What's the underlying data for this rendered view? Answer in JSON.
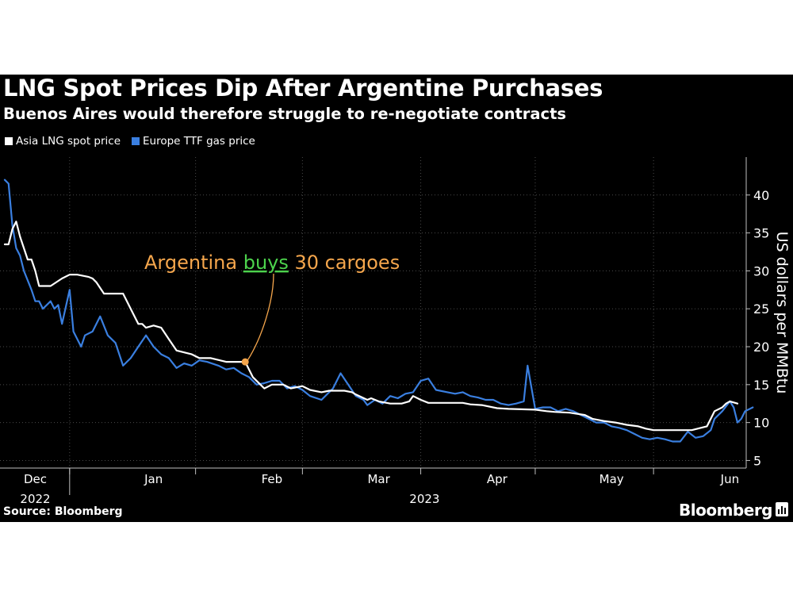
{
  "title": "LNG Spot Prices Dip After Argentine Purchases",
  "subtitle": "Buenos Aires would therefore struggle to re-negotiate contracts",
  "source": "Source: Bloomberg",
  "brand": "Bloomberg",
  "colors": {
    "background": "#000000",
    "asia": "#ffffff",
    "europe": "#3a7fe0",
    "annotation": "#f5a64c",
    "highlight": "#4cd24c"
  },
  "chart_data": {
    "type": "line",
    "ylabel": "US dollars per MMBtu",
    "ylim": [
      4,
      45
    ],
    "yticks": [
      5,
      10,
      15,
      20,
      25,
      30,
      35,
      40
    ],
    "xlim_day": [
      0,
      192
    ],
    "month_ticks": [
      {
        "label": "Dec",
        "day": 8
      },
      {
        "label": "Jan",
        "day": 39
      },
      {
        "label": "Feb",
        "day": 70
      },
      {
        "label": "Mar",
        "day": 98
      },
      {
        "label": "Apr",
        "day": 129
      },
      {
        "label": "May",
        "day": 159
      },
      {
        "label": "Jun",
        "day": 190
      }
    ],
    "year_labels": [
      {
        "label": "2022",
        "day": 8
      },
      {
        "label": "2023",
        "day": 110
      }
    ],
    "month_boundaries_day": [
      17,
      50,
      78,
      109,
      139,
      170
    ],
    "series": [
      {
        "name": "Asia LNG spot price",
        "color": "#ffffff",
        "points": [
          [
            0,
            33.5
          ],
          [
            1,
            33.5
          ],
          [
            2,
            35.5
          ],
          [
            3,
            36.5
          ],
          [
            4,
            34.5
          ],
          [
            6,
            31.5
          ],
          [
            7,
            31.5
          ],
          [
            8,
            30
          ],
          [
            9,
            28
          ],
          [
            12,
            28
          ],
          [
            15,
            29
          ],
          [
            17,
            29.5
          ],
          [
            19,
            29.5
          ],
          [
            22,
            29.2
          ],
          [
            23,
            29
          ],
          [
            24,
            28.5
          ],
          [
            26,
            27
          ],
          [
            29,
            27
          ],
          [
            31,
            27
          ],
          [
            33,
            25
          ],
          [
            35,
            23
          ],
          [
            36,
            23
          ],
          [
            37,
            22.5
          ],
          [
            39,
            22.8
          ],
          [
            41,
            22.5
          ],
          [
            43,
            21
          ],
          [
            45,
            19.5
          ],
          [
            49,
            19
          ],
          [
            51,
            18.5
          ],
          [
            54,
            18.5
          ],
          [
            58,
            18
          ],
          [
            63,
            18
          ],
          [
            65,
            16
          ],
          [
            67,
            15
          ],
          [
            68,
            14.5
          ],
          [
            70,
            15
          ],
          [
            73,
            15
          ],
          [
            75,
            14.5
          ],
          [
            78,
            14.8
          ],
          [
            80,
            14.3
          ],
          [
            83,
            14
          ],
          [
            85,
            14.2
          ],
          [
            89,
            14.2
          ],
          [
            91,
            14
          ],
          [
            92,
            13.7
          ],
          [
            95,
            13
          ],
          [
            96,
            13.2
          ],
          [
            98,
            12.8
          ],
          [
            101,
            12.5
          ],
          [
            104,
            12.5
          ],
          [
            106,
            12.8
          ],
          [
            107,
            13.5
          ],
          [
            109,
            13
          ],
          [
            111,
            12.6
          ],
          [
            115,
            12.6
          ],
          [
            118,
            12.6
          ],
          [
            120,
            12.6
          ],
          [
            122,
            12.4
          ],
          [
            125,
            12.3
          ],
          [
            129,
            11.9
          ],
          [
            132,
            11.8
          ],
          [
            139,
            11.7
          ],
          [
            142,
            11.5
          ],
          [
            144,
            11.4
          ],
          [
            148,
            11.3
          ],
          [
            152,
            11
          ],
          [
            154,
            10.5
          ],
          [
            157,
            10.2
          ],
          [
            160,
            10
          ],
          [
            163,
            9.7
          ],
          [
            166,
            9.5
          ],
          [
            168,
            9.2
          ],
          [
            170,
            9
          ],
          [
            173,
            9
          ],
          [
            176,
            9
          ],
          [
            180,
            9
          ],
          [
            184,
            9.5
          ],
          [
            185,
            10.5
          ],
          [
            186,
            11.5
          ],
          [
            188,
            12
          ],
          [
            189,
            12.5
          ],
          [
            190,
            12.8
          ],
          [
            192,
            12.5
          ]
        ]
      },
      {
        "name": "Europe TTF gas price",
        "color": "#3a7fe0",
        "points": [
          [
            0,
            42
          ],
          [
            1,
            41.5
          ],
          [
            2,
            36
          ],
          [
            3,
            33
          ],
          [
            4,
            32
          ],
          [
            5,
            30
          ],
          [
            7,
            27.5
          ],
          [
            8,
            26
          ],
          [
            9,
            26
          ],
          [
            10,
            25
          ],
          [
            12,
            26
          ],
          [
            13,
            25
          ],
          [
            14,
            25.5
          ],
          [
            15,
            23
          ],
          [
            17,
            27.5
          ],
          [
            18,
            22
          ],
          [
            20,
            20
          ],
          [
            21,
            21.5
          ],
          [
            23,
            22
          ],
          [
            25,
            24
          ],
          [
            27,
            21.5
          ],
          [
            29,
            20.5
          ],
          [
            31,
            17.5
          ],
          [
            33,
            18.5
          ],
          [
            35,
            20
          ],
          [
            37,
            21.5
          ],
          [
            39,
            20
          ],
          [
            41,
            19
          ],
          [
            43,
            18.5
          ],
          [
            45,
            17.2
          ],
          [
            47,
            17.8
          ],
          [
            49,
            17.5
          ],
          [
            51,
            18.2
          ],
          [
            53,
            18
          ],
          [
            56,
            17.5
          ],
          [
            58,
            17
          ],
          [
            60,
            17.2
          ],
          [
            62,
            16.5
          ],
          [
            64,
            16
          ],
          [
            66,
            15
          ],
          [
            68,
            15.2
          ],
          [
            70,
            15.5
          ],
          [
            72,
            15.5
          ],
          [
            74,
            14.5
          ],
          [
            76,
            14.8
          ],
          [
            78,
            14.3
          ],
          [
            80,
            13.5
          ],
          [
            83,
            13
          ],
          [
            86,
            14.5
          ],
          [
            88,
            16.5
          ],
          [
            90,
            15
          ],
          [
            92,
            13.5
          ],
          [
            94,
            13
          ],
          [
            95,
            12.3
          ],
          [
            97,
            13
          ],
          [
            99,
            12.5
          ],
          [
            101,
            13.5
          ],
          [
            103,
            13.2
          ],
          [
            105,
            13.8
          ],
          [
            107,
            14
          ],
          [
            109,
            15.5
          ],
          [
            111,
            15.8
          ],
          [
            113,
            14.3
          ],
          [
            116,
            14
          ],
          [
            118,
            13.8
          ],
          [
            120,
            14
          ],
          [
            122,
            13.5
          ],
          [
            124,
            13.3
          ],
          [
            126,
            13
          ],
          [
            128,
            13
          ],
          [
            130,
            12.5
          ],
          [
            132,
            12.3
          ],
          [
            134,
            12.5
          ],
          [
            136,
            12.8
          ],
          [
            137,
            17.5
          ],
          [
            139,
            11.8
          ],
          [
            141,
            12
          ],
          [
            143,
            12
          ],
          [
            145,
            11.5
          ],
          [
            147,
            11.8
          ],
          [
            149,
            11.5
          ],
          [
            151,
            11
          ],
          [
            153,
            10.5
          ],
          [
            155,
            10
          ],
          [
            157,
            10
          ],
          [
            159,
            9.5
          ],
          [
            161,
            9.3
          ],
          [
            163,
            9
          ],
          [
            165,
            8.5
          ],
          [
            167,
            8
          ],
          [
            169,
            7.8
          ],
          [
            171,
            8
          ],
          [
            173,
            7.8
          ],
          [
            175,
            7.5
          ],
          [
            177,
            7.5
          ],
          [
            179,
            8.8
          ],
          [
            181,
            8
          ],
          [
            183,
            8.2
          ],
          [
            185,
            9
          ],
          [
            186,
            10.5
          ],
          [
            188,
            11.5
          ],
          [
            190,
            12.8
          ],
          [
            191,
            12
          ],
          [
            192,
            10
          ],
          [
            193,
            10.5
          ],
          [
            194,
            11.5
          ],
          [
            196,
            12
          ]
        ]
      }
    ],
    "annotation": {
      "text_before": "Argentina",
      "text_highlight": "buys",
      "text_after": "30 cargoes",
      "point_day": 63,
      "point_value": 18
    }
  }
}
